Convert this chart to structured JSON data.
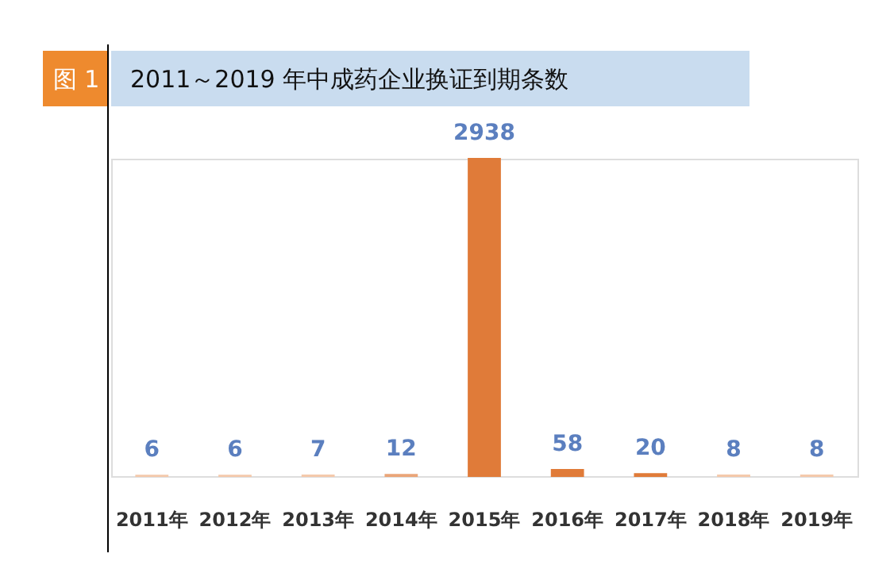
{
  "chart_data": {
    "type": "bar",
    "title": "2011～2019 年中成药企业换证到期条数",
    "annotations": [
      "图 1"
    ],
    "categories": [
      "2011年",
      "2012年",
      "2013年",
      "2014年",
      "2015年",
      "2016年",
      "2017年",
      "2018年",
      "2019年"
    ],
    "values": [
      6,
      6,
      7,
      12,
      2938,
      58,
      20,
      8,
      8
    ],
    "colors": [
      "#f4c9ab",
      "#f4c9ab",
      "#f4c9ab",
      "#eaa578",
      "#e07b39",
      "#e07b39",
      "#e07b39",
      "#f4c9ab",
      "#f4c9ab"
    ],
    "data_labels": true,
    "grid": false
  }
}
